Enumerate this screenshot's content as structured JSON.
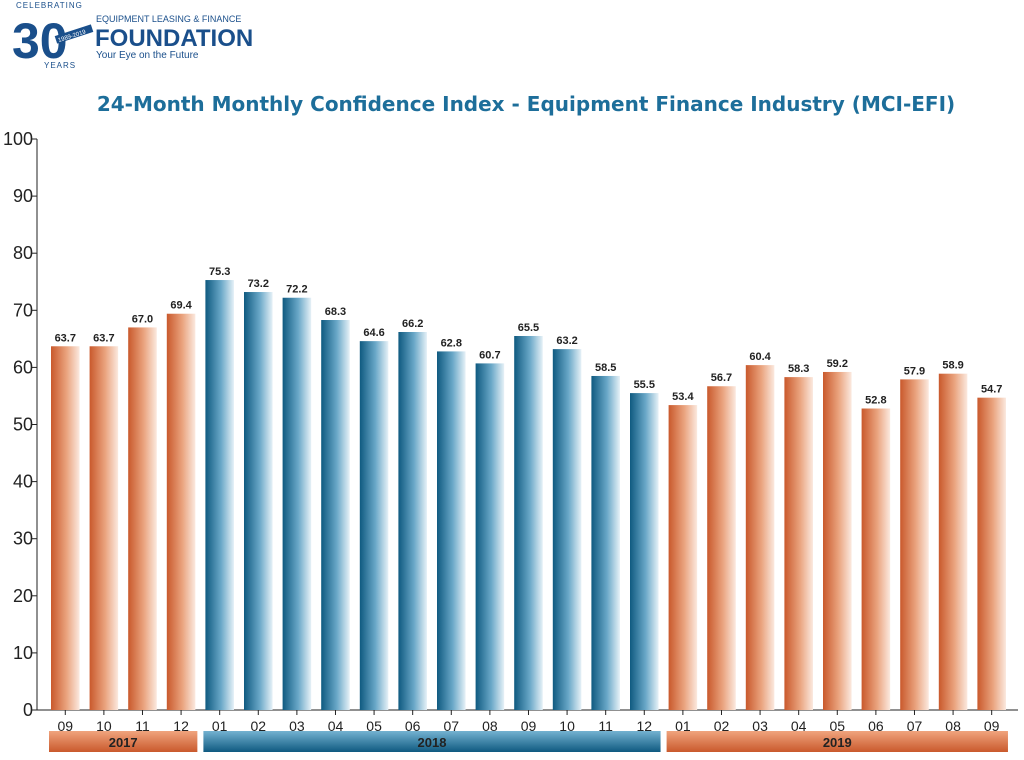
{
  "logo": {
    "celebrating": "CELEBRATING",
    "number": "30",
    "years": "YEARS",
    "dates": "1989-2019",
    "org_top": "EQUIPMENT LEASING & FINANCE",
    "org_name": "FOUNDATION",
    "tagline": "Your Eye on the Future"
  },
  "colors": {
    "orange": "#d4693a",
    "blue": "#1a6d93",
    "title": "#1d6e9a",
    "brand": "#1a4f8b"
  },
  "chart_data": {
    "type": "bar",
    "title": "24-Month Monthly Confidence Index - Equipment Finance Industry (MCI-EFI)",
    "xlabel": "",
    "ylabel": "",
    "ylim": [
      0,
      100
    ],
    "yticks": [
      "0",
      "10",
      "20",
      "30",
      "40",
      "50",
      "60",
      "70",
      "80",
      "90",
      "100"
    ],
    "grid": false,
    "categories": [
      "09",
      "10",
      "11",
      "12",
      "01",
      "02",
      "03",
      "04",
      "05",
      "06",
      "07",
      "08",
      "09",
      "10",
      "11",
      "12",
      "01",
      "02",
      "03",
      "04",
      "05",
      "06",
      "07",
      "08",
      "09"
    ],
    "values": [
      63.7,
      63.7,
      67.0,
      69.4,
      75.3,
      73.2,
      72.2,
      68.3,
      64.6,
      66.2,
      62.8,
      60.7,
      65.5,
      63.2,
      58.5,
      55.5,
      53.4,
      56.7,
      60.4,
      58.3,
      59.2,
      52.8,
      57.9,
      58.9,
      54.7
    ],
    "value_labels": [
      "63.7",
      "63.7",
      "67.0",
      "69.4",
      "75.3",
      "73.2",
      "72.2",
      "68.3",
      "64.6",
      "66.2",
      "62.8",
      "60.7",
      "65.5",
      "63.2",
      "58.5",
      "55.5",
      "53.4",
      "56.7",
      "60.4",
      "58.3",
      "59.2",
      "52.8",
      "57.9",
      "58.9",
      "54.7"
    ],
    "groups": [
      {
        "label": "2017",
        "start": 0,
        "end": 3,
        "color": "orange"
      },
      {
        "label": "2018",
        "start": 4,
        "end": 15,
        "color": "blue"
      },
      {
        "label": "2019",
        "start": 16,
        "end": 24,
        "color": "orange"
      }
    ]
  }
}
